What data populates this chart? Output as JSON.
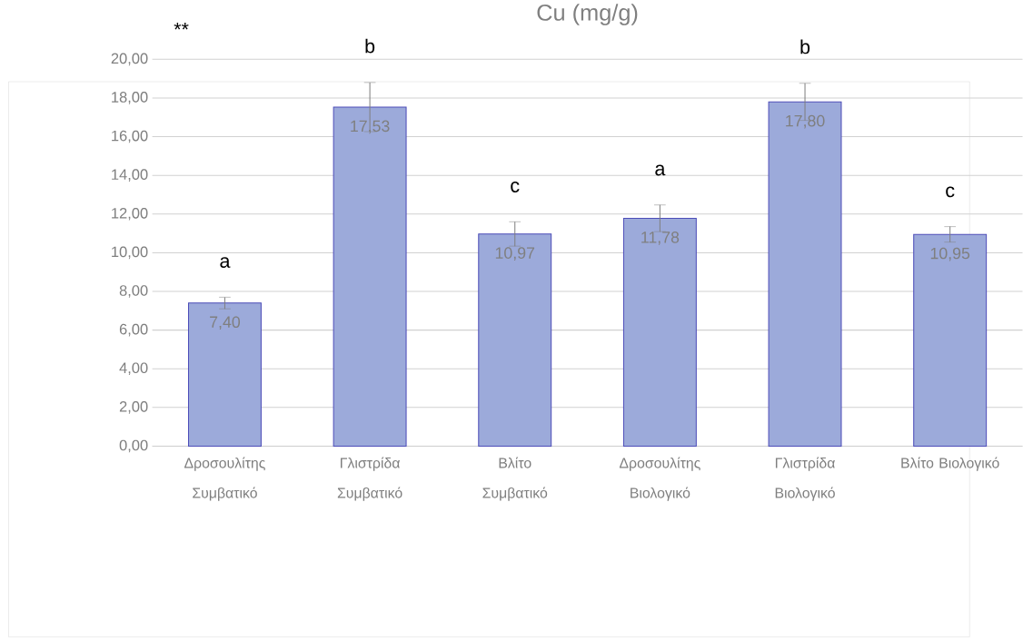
{
  "chart_data": {
    "type": "bar",
    "title": "Cu (mg/g)",
    "categories": [
      "Δροσουλίτης Συμβατικό",
      "Γλιστρίδα Συμβατικό",
      "Βλίτο Συμβατικό",
      "Δροσουλίτης Βιολογικό",
      "Γλιστρίδα Βιολογικό",
      "Βλίτο Βιολογικό"
    ],
    "values": [
      7.4,
      17.53,
      10.97,
      11.78,
      17.8,
      10.95
    ],
    "value_labels": [
      "7,40",
      "17,53",
      "10,97",
      "11,78",
      "17,80",
      "10,95"
    ],
    "errors": [
      0.3,
      1.27,
      0.63,
      0.69,
      0.96,
      0.4
    ],
    "color": "#9caada",
    "ylim": [
      0,
      20
    ],
    "yticks": [
      {
        "value": 0,
        "label": "0,00"
      },
      {
        "value": 2,
        "label": "2,00"
      },
      {
        "value": 4,
        "label": "4,00"
      },
      {
        "value": 6,
        "label": "6,00"
      },
      {
        "value": 8,
        "label": "8,00"
      },
      {
        "value": 10,
        "label": "10,00"
      },
      {
        "value": 12,
        "label": "12,00"
      },
      {
        "value": 14,
        "label": "14,00"
      },
      {
        "value": 16,
        "label": "16,00"
      },
      {
        "value": 18,
        "label": "18,00"
      },
      {
        "value": 20,
        "label": "20,00"
      }
    ],
    "grid": "y",
    "annotations": [
      "**",
      "a",
      "b",
      "c",
      "a",
      "b",
      "c"
    ]
  }
}
